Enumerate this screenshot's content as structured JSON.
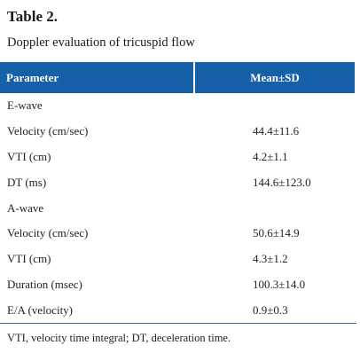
{
  "title": "Table 2.",
  "caption": "Doppler evaluation of tricuspid flow",
  "header": {
    "parameter": "Parameter",
    "mean_sd": "Mean±SD"
  },
  "rows": [
    {
      "parameter": "E-wave",
      "value": ""
    },
    {
      "parameter": "Velocity (cm/sec)",
      "value": "44.4±11.6"
    },
    {
      "parameter": "VTI (cm)",
      "value": "4.2±1.1"
    },
    {
      "parameter": "DT (ms)",
      "value": "144.6±123.0"
    },
    {
      "parameter": "A-wave",
      "value": ""
    },
    {
      "parameter": "Velocity (cm/sec)",
      "value": "50.6±14.9"
    },
    {
      "parameter": "VTI (cm)",
      "value": "4.3±1.2"
    },
    {
      "parameter": "Duration (msec)",
      "value": "100.3±14.0"
    },
    {
      "parameter": "E/A (velocity)",
      "value": "0.9±0.3"
    }
  ],
  "footnote": "VTI, velocity time integral; DT, deceleration time.",
  "colors": {
    "header_background": "#1560a8",
    "header_text": "#ffffff",
    "rule": "#2a6db3"
  }
}
